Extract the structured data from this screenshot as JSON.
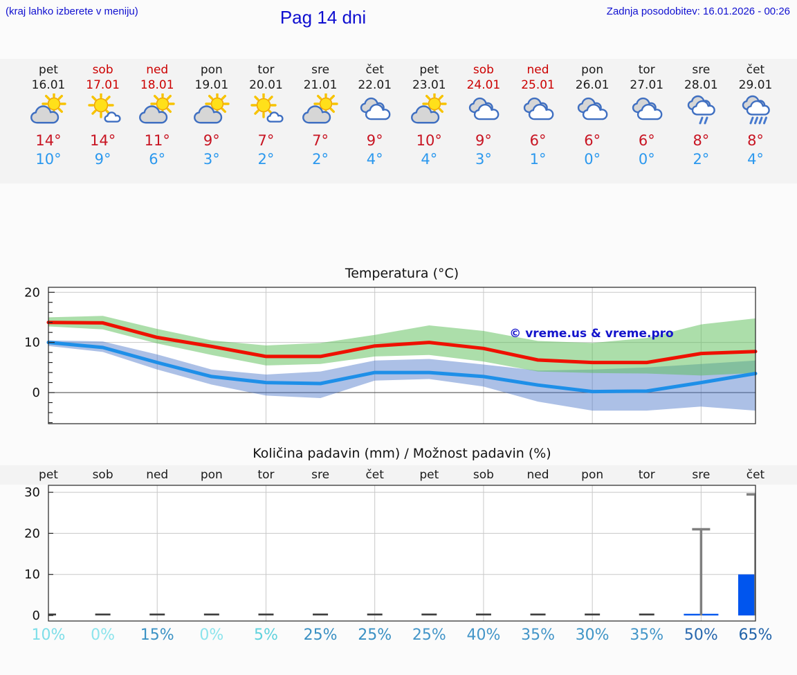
{
  "page": {
    "hint": "(kraj lahko izberete v meniju)",
    "title": "Pag 14 dni",
    "last_update": "Zadnja posodobitev: 16.01.2026 - 00:26"
  },
  "colors": {
    "header_blue": "#0f0fd0",
    "weekend_red": "#cc0000",
    "temp_high_red": "#c81422",
    "temp_low_blue": "#2b98ee",
    "line_red": "#ee1100",
    "line_blue": "#1e8fe8",
    "band_green": "rgba(90,190,85,0.5)",
    "band_blue": "rgba(70,115,200,0.45)",
    "bar_blue": "#0055ee",
    "whisker_gray": "#7f7f7f",
    "strip_bg": "#f3f3f3",
    "grid_gray": "#c8c8c8"
  },
  "forecast_days": [
    {
      "day": "pet",
      "date": "16.01",
      "weekend": false,
      "icon": "sun-gray-cloud",
      "high": "14°",
      "low": "10°"
    },
    {
      "day": "sob",
      "date": "17.01",
      "weekend": true,
      "icon": "sun-small-cloud",
      "high": "14°",
      "low": "9°"
    },
    {
      "day": "ned",
      "date": "18.01",
      "weekend": true,
      "icon": "sun-gray-cloud",
      "high": "11°",
      "low": "6°"
    },
    {
      "day": "pon",
      "date": "19.01",
      "weekend": false,
      "icon": "sun-gray-cloud",
      "high": "9°",
      "low": "3°"
    },
    {
      "day": "tor",
      "date": "20.01",
      "weekend": false,
      "icon": "sun-small-cloud",
      "high": "7°",
      "low": "2°"
    },
    {
      "day": "sre",
      "date": "21.01",
      "weekend": false,
      "icon": "sun-gray-cloud",
      "high": "7°",
      "low": "2°"
    },
    {
      "day": "čet",
      "date": "22.01",
      "weekend": false,
      "icon": "cloudy",
      "high": "9°",
      "low": "4°"
    },
    {
      "day": "pet",
      "date": "23.01",
      "weekend": false,
      "icon": "sun-gray-cloud",
      "high": "10°",
      "low": "4°"
    },
    {
      "day": "sob",
      "date": "24.01",
      "weekend": true,
      "icon": "cloudy",
      "high": "9°",
      "low": "3°"
    },
    {
      "day": "ned",
      "date": "25.01",
      "weekend": true,
      "icon": "cloudy",
      "high": "6°",
      "low": "1°"
    },
    {
      "day": "pon",
      "date": "26.01",
      "weekend": false,
      "icon": "cloudy",
      "high": "6°",
      "low": "0°"
    },
    {
      "day": "tor",
      "date": "27.01",
      "weekend": false,
      "icon": "cloudy",
      "high": "6°",
      "low": "0°"
    },
    {
      "day": "sre",
      "date": "28.01",
      "weekend": false,
      "icon": "rain-light",
      "high": "8°",
      "low": "2°"
    },
    {
      "day": "čet",
      "date": "29.01",
      "weekend": false,
      "icon": "rain",
      "high": "8°",
      "low": "4°"
    }
  ],
  "chart_data": [
    {
      "type": "line",
      "title": "Temperatura (°C)",
      "watermark": "© vreme.us & vreme.pro",
      "x_labels": [
        "pet 16.01",
        "sob 17.01",
        "ned 18.01",
        "pon 19.01",
        "tor 20.01",
        "sre 21.01",
        "čet 22.01",
        "pet 23.01",
        "sob 24.01",
        "ned 25.01",
        "pon 26.01",
        "tor 27.01",
        "sre 28.01",
        "čet 29.01"
      ],
      "ylim": [
        -6.2,
        21
      ],
      "yticks": [
        0,
        10,
        20
      ],
      "minor_tick_step": 2,
      "grid": true,
      "series": [
        {
          "name": "max temperature",
          "color": "#ee1100",
          "values": [
            14,
            13.9,
            11,
            9.2,
            7.2,
            7.2,
            9.3,
            10,
            8.8,
            6.5,
            6,
            6,
            7.8,
            8.2
          ]
        },
        {
          "name": "min temperature",
          "color": "#1e8fe8",
          "values": [
            10,
            9,
            6,
            3.2,
            2,
            1.8,
            4,
            4,
            3.2,
            1.5,
            0.2,
            0.3,
            2,
            3.8
          ]
        }
      ],
      "bands": [
        {
          "name": "min range",
          "color": "rgba(70,115,200,0.45)",
          "upper": [
            10.4,
            10.2,
            7.6,
            4.6,
            3.6,
            4.2,
            6.4,
            6.7,
            5.6,
            4.4,
            4.6,
            5.0,
            5.7,
            6.4
          ],
          "lower": [
            9.3,
            8.1,
            4.6,
            1.6,
            -0.6,
            -1.1,
            2.4,
            2.7,
            1.2,
            -1.8,
            -3.6,
            -3.6,
            -2.8,
            -3.6
          ]
        },
        {
          "name": "max range",
          "color": "rgba(90,190,85,0.5)",
          "upper": [
            15.0,
            15.3,
            12.7,
            10.4,
            9.4,
            9.9,
            11.5,
            13.4,
            12.3,
            10.3,
            9.9,
            10.9,
            13.6,
            14.8
          ],
          "lower": [
            13.2,
            12.6,
            9.8,
            7.5,
            5.4,
            5.7,
            7.2,
            7.5,
            6.2,
            4.2,
            3.9,
            3.8,
            3.4,
            3.9
          ]
        }
      ]
    },
    {
      "type": "bar",
      "title": "Količina padavin (mm) / Možnost padavin (%)",
      "day_labels": [
        "pet",
        "sob",
        "ned",
        "pon",
        "tor",
        "sre",
        "čet",
        "pet",
        "sob",
        "ned",
        "pon",
        "tor",
        "sre",
        "čet"
      ],
      "ylim": [
        0,
        31.7
      ],
      "yticks": [
        0,
        10,
        20,
        30
      ],
      "values_mm": [
        0,
        0,
        0,
        0,
        0,
        0,
        0,
        0,
        0,
        0,
        0,
        0,
        0.4,
        10
      ],
      "whisker_max_mm": [
        null,
        null,
        null,
        null,
        null,
        null,
        null,
        null,
        null,
        null,
        null,
        null,
        21,
        29.5
      ],
      "probabilities": [
        {
          "label": "10%",
          "color": "#7edee8"
        },
        {
          "label": "0%",
          "color": "#8ce4ec"
        },
        {
          "label": "15%",
          "color": "#3b92c4"
        },
        {
          "label": "0%",
          "color": "#8ce4ec"
        },
        {
          "label": "5%",
          "color": "#5fd2dd"
        },
        {
          "label": "25%",
          "color": "#3a90c3"
        },
        {
          "label": "25%",
          "color": "#3a90c3"
        },
        {
          "label": "25%",
          "color": "#4395c8"
        },
        {
          "label": "40%",
          "color": "#4395c8"
        },
        {
          "label": "35%",
          "color": "#4395c8"
        },
        {
          "label": "30%",
          "color": "#4095c6"
        },
        {
          "label": "35%",
          "color": "#4395c8"
        },
        {
          "label": "50%",
          "color": "#2767ae"
        },
        {
          "label": "65%",
          "color": "#2163a9"
        }
      ]
    }
  ]
}
